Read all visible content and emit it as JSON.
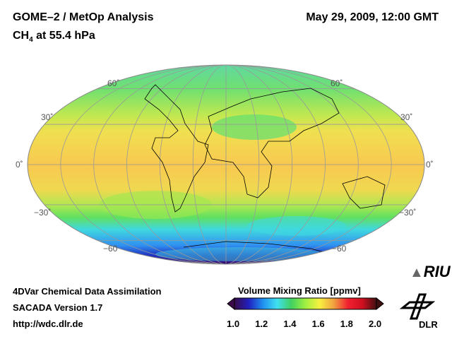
{
  "header": {
    "title": "GOME–2 / MetOp Analysis",
    "species": "CH",
    "species_sub": "4",
    "level": " at 55.4 hPa",
    "datetime": "May 29, 2009, 12:00 GMT"
  },
  "map": {
    "projection": "Mollweide",
    "lat_labels_left": [
      "60˚",
      "30˚",
      "0˚",
      "−30˚",
      "−60"
    ],
    "lat_labels_right": [
      "60˚",
      "30˚",
      "0˚",
      "−30˚",
      "−60"
    ]
  },
  "footer": {
    "line1": "4DVar Chemical Data Assimilation",
    "line2": "SACADA Version 1.7",
    "line3": "http://wdc.dlr.de"
  },
  "colorbar": {
    "title": "Volume Mixing Ratio [ppmv]",
    "ticks": [
      "1.0",
      "1.2",
      "1.4",
      "1.6",
      "1.8",
      "2.0"
    ],
    "min": 1.0,
    "max": 2.0,
    "colors": [
      "#3a0a4a",
      "#2020c0",
      "#2090f0",
      "#40e0f0",
      "#40d060",
      "#a0f040",
      "#f8f040",
      "#f0a040",
      "#f02030",
      "#d01020",
      "#401010"
    ]
  },
  "logos": {
    "riu": "RIU",
    "dlr": "DLR"
  }
}
